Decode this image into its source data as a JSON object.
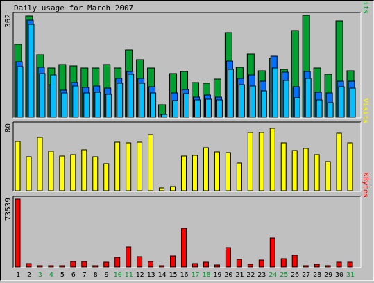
{
  "title": "Daily usage for March 2007",
  "days": [
    "1",
    "2",
    "3",
    "4",
    "5",
    "6",
    "7",
    "8",
    "9",
    "10",
    "11",
    "12",
    "13",
    "14",
    "15",
    "16",
    "17",
    "18",
    "19",
    "20",
    "21",
    "22",
    "23",
    "24",
    "25",
    "26",
    "27",
    "28",
    "29",
    "30",
    "31"
  ],
  "weekend_days": [
    "3",
    "4",
    "10",
    "11",
    "17",
    "18",
    "24",
    "25",
    "31"
  ],
  "colors": {
    "background": "#c0c0c0",
    "hits": "#00a030",
    "files": "#0070ff",
    "pages": "#00c0ff",
    "visits": "#ffff00",
    "kbytes": "#ff0000",
    "weekday_label": "#000000",
    "weekend_label": "#00a030"
  },
  "chart_data": [
    {
      "type": "bar",
      "series": [
        {
          "name": "Hits",
          "values": [
            258,
            360,
            222,
            174,
            187,
            181,
            176,
            176,
            188,
            174,
            240,
            205,
            176,
            44,
            155,
            162,
            124,
            121,
            135,
            300,
            178,
            225,
            164,
            210,
            170,
            308,
            362,
            175,
            152,
            342,
            165
          ]
        },
        {
          "name": "Files",
          "values": [
            198,
            344,
            177,
            115,
            95,
            122,
            106,
            110,
            103,
            138,
            162,
            138,
            108,
            10,
            86,
            98,
            72,
            79,
            72,
            200,
            138,
            149,
            127,
            216,
            161,
            109,
            162,
            88,
            86,
            128,
            128
          ]
        },
        {
          "name": "Pages",
          "values": [
            180,
            331,
            155,
            150,
            85,
            110,
            86,
            88,
            82,
            120,
            153,
            120,
            85,
            10,
            59,
            83,
            61,
            65,
            61,
            169,
            115,
            112,
            93,
            174,
            131,
            70,
            139,
            62,
            52,
            109,
            103
          ]
        }
      ],
      "label_series": "Pages/Files/Hits",
      "ymax_label": "362",
      "ylim": [
        0,
        362
      ]
    },
    {
      "type": "bar",
      "series": [
        {
          "name": "Visits",
          "values": [
            60,
            41,
            65,
            48,
            42,
            44,
            50,
            41,
            33,
            59,
            58,
            59,
            68,
            3,
            5,
            42,
            43,
            52,
            47,
            46,
            34,
            71,
            71,
            76,
            58,
            49,
            51,
            44,
            35,
            70,
            58
          ]
        }
      ],
      "label_series": "Visits",
      "ymax_label": "80",
      "ylim": [
        0,
        80
      ]
    },
    {
      "type": "bar",
      "series": [
        {
          "name": "KBytes",
          "values": [
            73539,
            3900,
            1500,
            1500,
            1600,
            6000,
            6000,
            1500,
            5000,
            10500,
            21500,
            11500,
            5900,
            1700,
            12200,
            42300,
            3800,
            5500,
            1900,
            21000,
            8500,
            2900,
            7700,
            31200,
            9300,
            12500,
            1200,
            3200,
            1200,
            5000,
            5500
          ]
        }
      ],
      "label_series": "KBytes",
      "ymax_label": "73539",
      "ylim": [
        0,
        73539
      ]
    }
  ]
}
